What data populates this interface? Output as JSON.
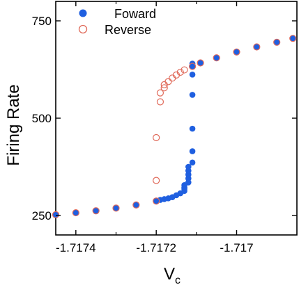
{
  "chart_data": {
    "type": "scatter",
    "xlabel": "V",
    "xlabel_subscript": "c",
    "ylabel": "Firing Rate",
    "xlim": [
      -1.71745,
      -1.71685
    ],
    "ylim": [
      200,
      800
    ],
    "xticks": [
      -1.7174,
      -1.7172,
      -1.717
    ],
    "xtick_labels": [
      "-1.7174",
      "-1.7172",
      "-1.717"
    ],
    "yticks": [
      250,
      500,
      750
    ],
    "ytick_labels": [
      "250",
      "500",
      "750"
    ],
    "grid": false,
    "legend_position": "top-left",
    "series": [
      {
        "name": "Foward",
        "marker": "filled-circle",
        "color": "#1f5fe0",
        "x": [
          -1.71712,
          -1.71712,
          -1.71712,
          -1.71712,
          -1.71712,
          -1.71713,
          -1.71713,
          -1.71713,
          -1.71713,
          -1.71714,
          -1.71715,
          -1.71716,
          -1.71717,
          -1.71718,
          -1.71719,
          -1.7172,
          -1.71725,
          -1.7173,
          -1.71735,
          -1.7174,
          -1.71745,
          -1.71711,
          -1.71711,
          -1.71711,
          -1.71711,
          -1.71711,
          -1.71711,
          -1.71711,
          -1.71711,
          -1.71709,
          -1.71705,
          -1.717,
          -1.71695,
          -1.7169,
          -1.71686
        ],
        "y": [
          335,
          345,
          355,
          365,
          375,
          322,
          328,
          318,
          313,
          307,
          302,
          297,
          294,
          292,
          290,
          287,
          277,
          269,
          262,
          257,
          252,
          386,
          415,
          473,
          560,
          612,
          632,
          640,
          635,
          642,
          655,
          670,
          683,
          695,
          705
        ]
      },
      {
        "name": "Reverse",
        "marker": "open-circle",
        "color": "#e06a5a",
        "x": [
          -1.71745,
          -1.7174,
          -1.71735,
          -1.7173,
          -1.71725,
          -1.7172,
          -1.7172,
          -1.7172,
          -1.71719,
          -1.71719,
          -1.71718,
          -1.71718,
          -1.71717,
          -1.71716,
          -1.71715,
          -1.71714,
          -1.71713,
          -1.71711,
          -1.71709,
          -1.71705,
          -1.717,
          -1.71695,
          -1.7169,
          -1.71686
        ],
        "y": [
          252,
          257,
          262,
          269,
          277,
          287,
          340,
          450,
          542,
          565,
          578,
          586,
          594,
          603,
          611,
          618,
          624,
          633,
          642,
          655,
          670,
          683,
          695,
          705
        ]
      }
    ]
  }
}
